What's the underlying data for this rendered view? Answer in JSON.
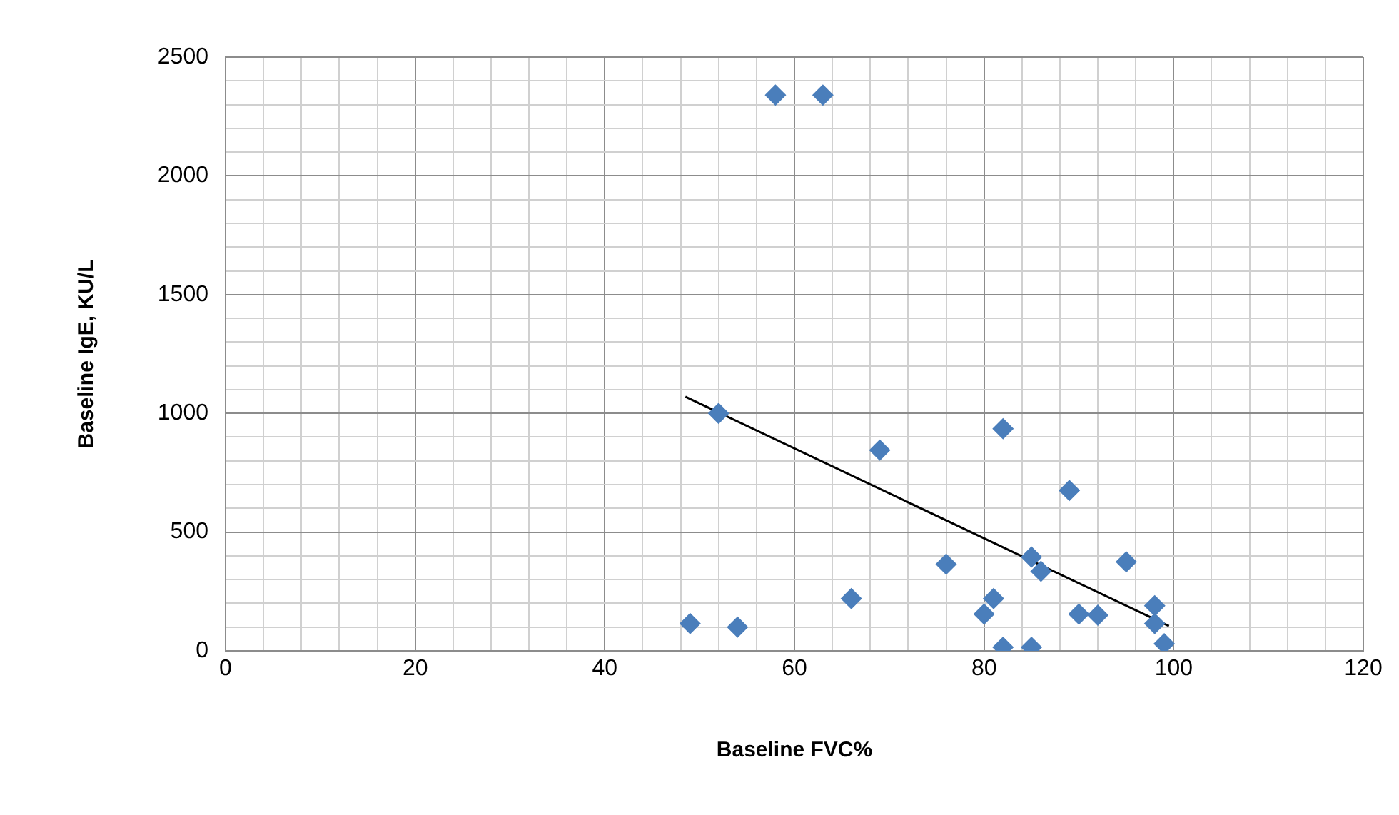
{
  "chart_data": {
    "type": "scatter",
    "xlabel": "Baseline FVC%",
    "ylabel": "Baseline IgE, KU/L",
    "xlim": [
      0,
      120
    ],
    "ylim": [
      0,
      2500
    ],
    "xticks": [
      0,
      {
        "value": 4,
        "label": null
      },
      {
        "value": 8,
        "label": null
      },
      {
        "value": 12,
        "label": null
      },
      {
        "value": 16,
        "label": null
      },
      20,
      {
        "value": 24,
        "label": null
      },
      {
        "value": 28,
        "label": null
      },
      {
        "value": 32,
        "label": null
      },
      {
        "value": 36,
        "label": null
      },
      40,
      {
        "value": 44,
        "label": null
      },
      {
        "value": 48,
        "label": null
      },
      {
        "value": 52,
        "label": null
      },
      {
        "value": 56,
        "label": null
      },
      60,
      {
        "value": 64,
        "label": null
      },
      {
        "value": 68,
        "label": null
      },
      {
        "value": 72,
        "label": null
      },
      {
        "value": 76,
        "label": null
      },
      80,
      {
        "value": 84,
        "label": null
      },
      {
        "value": 88,
        "label": null
      },
      {
        "value": 92,
        "label": null
      },
      {
        "value": 96,
        "label": null
      },
      100,
      {
        "value": 104,
        "label": null
      },
      {
        "value": 108,
        "label": null
      },
      {
        "value": 112,
        "label": null
      },
      {
        "value": 116,
        "label": null
      },
      120
    ],
    "yticks": [
      0,
      {
        "value": 100,
        "label": null
      },
      {
        "value": 200,
        "label": null
      },
      {
        "value": 300,
        "label": null
      },
      {
        "value": 400,
        "label": null
      },
      500,
      {
        "value": 600,
        "label": null
      },
      {
        "value": 700,
        "label": null
      },
      {
        "value": 800,
        "label": null
      },
      {
        "value": 900,
        "label": null
      },
      1000,
      {
        "value": 1100,
        "label": null
      },
      {
        "value": 1200,
        "label": null
      },
      {
        "value": 1300,
        "label": null
      },
      {
        "value": 1400,
        "label": null
      },
      1500,
      {
        "value": 1600,
        "label": null
      },
      {
        "value": 1700,
        "label": null
      },
      {
        "value": 1800,
        "label": null
      },
      {
        "value": 1900,
        "label": null
      },
      2000,
      {
        "value": 2100,
        "label": null
      },
      {
        "value": 2200,
        "label": null
      },
      {
        "value": 2300,
        "label": null
      },
      {
        "value": 2400,
        "label": null
      },
      2500
    ],
    "grid": true,
    "legend": false,
    "marker": "diamond",
    "series": [
      {
        "color": "#4a7ebb",
        "x": [
          49,
          54,
          58,
          63,
          52,
          69,
          66,
          76,
          82,
          89,
          81,
          80,
          82,
          85,
          85,
          86,
          90,
          92,
          95,
          98,
          98,
          99
        ],
        "values": [
          115,
          100,
          2340,
          2340,
          1000,
          845,
          220,
          365,
          935,
          675,
          220,
          155,
          15,
          15,
          395,
          335,
          155,
          150,
          375,
          190,
          115,
          30
        ]
      },
      {
        "type": "line",
        "color": "#000000",
        "marker": "none",
        "x": [
          48.5,
          99.5
        ],
        "values": [
          1070,
          105
        ]
      }
    ]
  }
}
